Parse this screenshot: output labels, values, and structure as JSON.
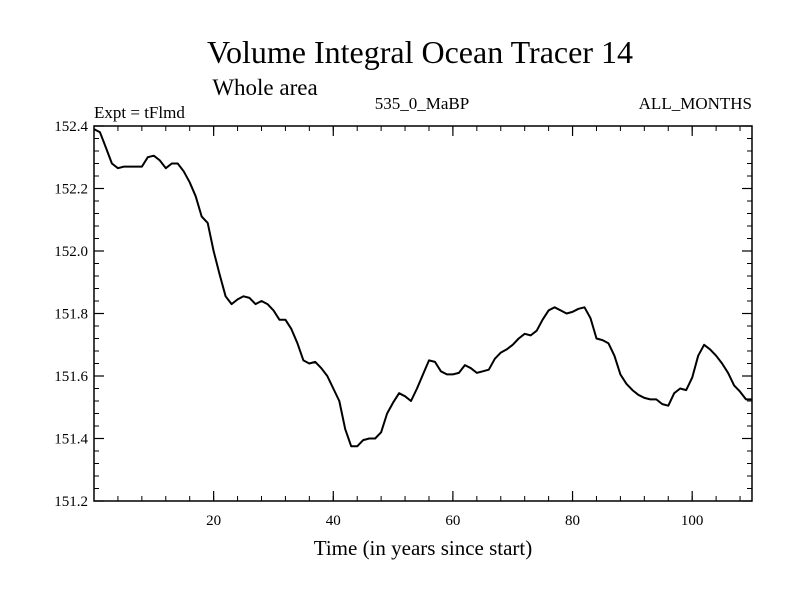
{
  "chart_data": {
    "type": "line",
    "title": "Volume Integral Ocean Tracer 14",
    "subtitle": "Whole area",
    "left_label": "Expt = tFlmd",
    "center_label": "535_0_MaBP",
    "right_label": "ALL_MONTHS",
    "xlabel": "Time (in years since start)",
    "ylabel": "",
    "xlim": [
      0,
      110
    ],
    "ylim": [
      151.2,
      152.4
    ],
    "x_ticks": [
      20,
      40,
      60,
      80,
      100
    ],
    "y_ticks": [
      151.2,
      151.4,
      151.6,
      151.8,
      152.0,
      152.2,
      152.4
    ],
    "y_tick_labels": [
      "151.2",
      "151.4",
      "151.6",
      "151.8",
      "152.0",
      "152.2",
      "152.4"
    ],
    "grid": false,
    "line_color": "#000000",
    "series": [
      {
        "x": [
          0,
          1,
          2,
          3,
          4,
          5,
          6,
          7,
          8,
          9,
          10,
          11,
          12,
          13,
          14,
          15,
          16,
          17,
          18,
          19,
          20,
          21,
          22,
          23,
          24,
          25,
          26,
          27,
          28,
          29,
          30,
          31,
          32,
          33,
          34,
          35,
          36,
          37,
          38,
          39,
          40,
          41,
          42,
          43,
          44,
          45,
          46,
          47,
          48,
          49,
          50,
          51,
          52,
          53,
          54,
          55,
          56,
          57,
          58,
          59,
          60,
          61,
          62,
          63,
          64,
          65,
          66,
          67,
          68,
          69,
          70,
          71,
          72,
          73,
          74,
          75,
          76,
          77,
          78,
          79,
          80,
          81,
          82,
          83,
          84,
          85,
          86,
          87,
          88,
          89,
          90,
          91,
          92,
          93,
          94,
          95,
          96,
          97,
          98,
          99,
          100,
          101,
          102,
          103,
          104,
          105,
          106,
          107,
          108,
          109,
          110
        ],
        "y": [
          152.39,
          152.38,
          152.33,
          152.28,
          152.265,
          152.27,
          152.27,
          152.27,
          152.27,
          152.3,
          152.305,
          152.29,
          152.265,
          152.28,
          152.28,
          152.255,
          152.22,
          152.175,
          152.11,
          152.09,
          152.0,
          151.925,
          151.855,
          151.83,
          151.845,
          151.855,
          151.85,
          151.83,
          151.84,
          151.83,
          151.81,
          151.78,
          151.78,
          151.75,
          151.705,
          151.65,
          151.64,
          151.645,
          151.625,
          151.6,
          151.56,
          151.52,
          151.43,
          151.375,
          151.375,
          151.395,
          151.4,
          151.4,
          151.42,
          151.48,
          151.515,
          151.545,
          151.535,
          151.52,
          151.56,
          151.605,
          151.65,
          151.645,
          151.615,
          151.605,
          151.605,
          151.61,
          151.635,
          151.625,
          151.61,
          151.615,
          151.62,
          151.655,
          151.675,
          151.685,
          151.7,
          151.72,
          151.735,
          151.73,
          151.745,
          151.78,
          151.81,
          151.82,
          151.81,
          151.8,
          151.805,
          151.815,
          151.82,
          151.785,
          151.72,
          151.715,
          151.705,
          151.665,
          151.605,
          151.575,
          151.555,
          151.54,
          151.53,
          151.525,
          151.525,
          151.51,
          151.505,
          151.545,
          151.56,
          151.555,
          151.595,
          151.665,
          151.7,
          151.685,
          151.665,
          151.64,
          151.61,
          151.57,
          151.55,
          151.525,
          151.525
        ]
      }
    ]
  }
}
